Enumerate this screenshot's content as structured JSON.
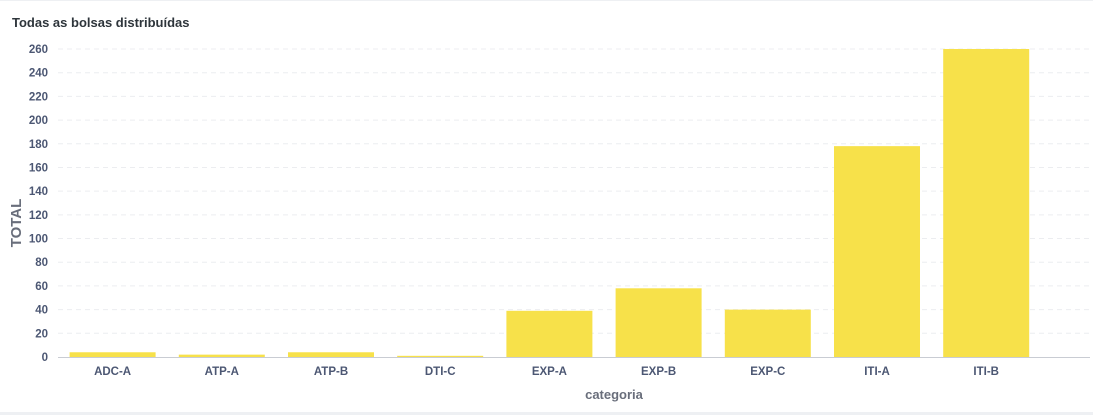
{
  "card": {
    "title": "Todas as bolsas distribuídas"
  },
  "chart_data": {
    "type": "bar",
    "title": "Todas as bolsas distribuídas",
    "xlabel": "categoria",
    "ylabel": "TOTAL",
    "categories": [
      "ADC-A",
      "ATP-A",
      "ATP-B",
      "DTI-C",
      "EXP-A",
      "EXP-B",
      "EXP-C",
      "ITI-A",
      "ITI-B"
    ],
    "values": [
      4,
      2,
      4,
      1,
      39,
      58,
      40,
      178,
      260
    ],
    "ylim": [
      0,
      260
    ],
    "yticks": [
      0,
      20,
      40,
      60,
      80,
      100,
      120,
      140,
      160,
      180,
      200,
      220,
      240,
      260
    ],
    "grid": true,
    "legend": "none",
    "bar_color": "#f7e14a",
    "grid_color": "#ecedf0",
    "axis_color": "#c9ccd3"
  }
}
